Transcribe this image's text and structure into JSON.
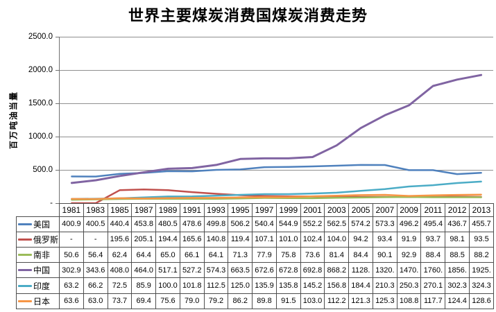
{
  "chart_data": {
    "type": "line",
    "title": "世界主要煤炭消费国煤炭消费走势",
    "ylabel": "百万吨油当量",
    "xlabel": "",
    "ylim": [
      0,
      2500
    ],
    "grid": true,
    "legend_position": "data-table-left-keys",
    "y_tick_labels": [
      "2500.0",
      "2000.0",
      "1500.0",
      "1000.0",
      "500.0",
      "-"
    ],
    "categories": [
      "1981",
      "1983",
      "1985",
      "1987",
      "1989",
      "1991",
      "1993",
      "1995",
      "1997",
      "1999",
      "2001",
      "2003",
      "2005",
      "2007",
      "2009",
      "2011",
      "2012",
      "2013"
    ],
    "series": [
      {
        "name": "美国",
        "color": "#4F81BD",
        "values": [
          "400.9",
          "400.5",
          "440.4",
          "453.8",
          "480.5",
          "478.6",
          "499.8",
          "506.2",
          "540.4",
          "544.9",
          "552.2",
          "562.5",
          "574.2",
          "573.3",
          "496.2",
          "495.4",
          "436.7",
          "455.7"
        ]
      },
      {
        "name": "俄罗斯",
        "color": "#C0504D",
        "values": [
          "-",
          "-",
          "195.6",
          "205.1",
          "194.4",
          "165.6",
          "140.8",
          "119.4",
          "107.1",
          "101.0",
          "102.4",
          "104.0",
          "94.2",
          "93.4",
          "91.9",
          "93.7",
          "98.1",
          "93.5"
        ]
      },
      {
        "name": "南非",
        "color": "#9BBB59",
        "values": [
          "50.6",
          "56.4",
          "62.4",
          "64.4",
          "65.0",
          "66.1",
          "64.1",
          "71.3",
          "77.9",
          "75.8",
          "73.6",
          "81.4",
          "84.4",
          "90.1",
          "92.9",
          "88.4",
          "88.5",
          "88.2"
        ]
      },
      {
        "name": "中国",
        "color": "#8064A2",
        "values": [
          "302.9",
          "343.6",
          "408.0",
          "464.0",
          "517.1",
          "527.2",
          "574.3",
          "663.5",
          "672.6",
          "672.8",
          "692.8",
          "868.2",
          "1128.",
          "1320.",
          "1470.",
          "1760.",
          "1856.",
          "1925."
        ]
      },
      {
        "name": "印度",
        "color": "#4BACC6",
        "values": [
          "63.2",
          "66.2",
          "72.5",
          "85.9",
          "100.0",
          "101.8",
          "112.5",
          "125.0",
          "135.9",
          "135.8",
          "145.2",
          "156.8",
          "184.4",
          "210.3",
          "250.3",
          "270.1",
          "302.3",
          "324.3"
        ]
      },
      {
        "name": "日本",
        "color": "#F79646",
        "values": [
          "63.6",
          "63.0",
          "73.7",
          "69.4",
          "75.6",
          "79.0",
          "79.2",
          "86.2",
          "89.8",
          "91.5",
          "103.0",
          "112.2",
          "121.3",
          "125.3",
          "108.8",
          "117.7",
          "124.4",
          "128.6"
        ]
      }
    ]
  },
  "colors": {
    "gridline": "#8f8f8f",
    "axis": "#6f6f6f",
    "table_border": "#4d4d4d",
    "text": "#000000"
  }
}
